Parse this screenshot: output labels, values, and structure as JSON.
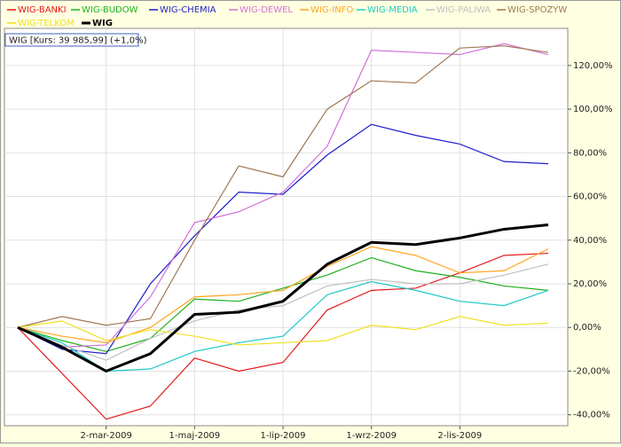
{
  "chart_data": {
    "type": "line",
    "annotation": "WIG [Kurs: 39 985,99] (+1,0%)",
    "categories": [
      null,
      null,
      "2-mar-2009",
      null,
      "1-maj-2009",
      null,
      "1-lip-2009",
      null,
      "1-wrz-2009",
      null,
      "2-lis-2009",
      null,
      null
    ],
    "ylim": [
      -45,
      137
    ],
    "yticks": [
      {
        "value": -40,
        "label": "-40,00%"
      },
      {
        "value": -20,
        "label": "-20,00%"
      },
      {
        "value": 0,
        "label": "0,00%"
      },
      {
        "value": 20,
        "label": "20,00%"
      },
      {
        "value": 40,
        "label": "40,00%"
      },
      {
        "value": 60,
        "label": "60,00%"
      },
      {
        "value": 80,
        "label": "80,00%"
      },
      {
        "value": 100,
        "label": "100,00%"
      },
      {
        "value": 120,
        "label": "120,00%"
      }
    ],
    "grid": true,
    "series": [
      {
        "name": "WIG-BANKI",
        "color": "#e41a1c",
        "values": [
          0,
          -21,
          -42,
          -36,
          -14,
          -20,
          -16,
          8,
          17,
          18,
          25,
          33,
          34
        ]
      },
      {
        "name": "WIG-BUDOW",
        "color": "#1fb01f",
        "values": [
          0,
          -6,
          -11,
          -5,
          13,
          12,
          18,
          24,
          32,
          26,
          23,
          19,
          17
        ]
      },
      {
        "name": "WIG-CHEMIA",
        "color": "#1f1fc8",
        "values": [
          0,
          -10,
          -12,
          20,
          42,
          62,
          61,
          79,
          93,
          88,
          84,
          76,
          75
        ]
      },
      {
        "name": "WIG-DEWEL",
        "color": "#d070d8",
        "values": [
          0,
          -9,
          -8,
          14,
          48,
          53,
          62,
          83,
          127,
          126,
          125,
          130,
          125
        ]
      },
      {
        "name": "WIG-INFO",
        "color": "#ffa520",
        "values": [
          0,
          -4,
          -7,
          0,
          14,
          15,
          17,
          28,
          37,
          33,
          25,
          26,
          36
        ]
      },
      {
        "name": "WIG-MEDIA",
        "color": "#20c8c8",
        "values": [
          0,
          -7,
          -20,
          -19,
          -11,
          -7,
          -4,
          15,
          21,
          17,
          12,
          10,
          17
        ]
      },
      {
        "name": "WIG-PALIWA",
        "color": "#c0c0c0",
        "values": [
          0,
          -8,
          -15,
          -5,
          3,
          8,
          10,
          19,
          22,
          20,
          20,
          24,
          29
        ]
      },
      {
        "name": "WIG-SPOZYW",
        "color": "#a07850",
        "values": [
          0,
          5,
          1,
          4,
          40,
          74,
          69,
          100,
          113,
          112,
          128,
          129,
          126
        ]
      },
      {
        "name": "WIG-TELKOM",
        "color": "#f0e020",
        "values": [
          0,
          3,
          -6,
          -1,
          -4,
          -8,
          -7,
          -6,
          1,
          -1,
          5,
          1,
          2
        ]
      },
      {
        "name": "WIG",
        "color": "#000000",
        "values": [
          0,
          -9,
          -20,
          -12,
          6,
          7,
          12,
          29,
          39,
          38,
          41,
          45,
          47
        ]
      }
    ]
  }
}
